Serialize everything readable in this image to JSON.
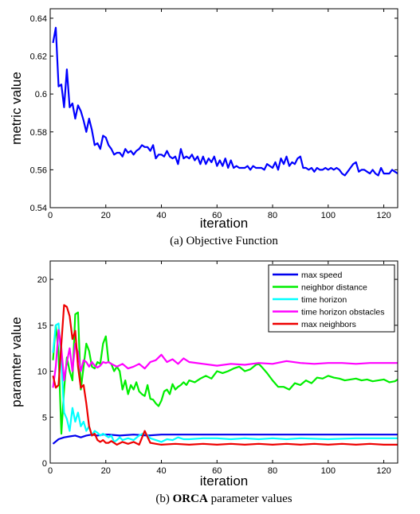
{
  "chart_data": [
    {
      "type": "line",
      "caption": "(a) Objective Function",
      "xlabel": "iteration",
      "ylabel": "metric value",
      "xlim": [
        0,
        125
      ],
      "ylim": [
        0.54,
        0.645
      ],
      "x_ticks": [
        0,
        20,
        40,
        60,
        80,
        100,
        120
      ],
      "y_ticks": [
        0.54,
        0.56,
        0.58,
        0.6,
        0.62,
        0.64
      ],
      "grid": false,
      "series": [
        {
          "color": "#0000ff",
          "x": [
            1,
            2,
            3,
            4,
            5,
            6,
            7,
            8,
            9,
            10,
            11,
            12,
            13,
            14,
            15,
            16,
            17,
            18,
            19,
            20,
            21,
            22,
            23,
            24,
            25,
            26,
            27,
            28,
            29,
            30,
            31,
            32,
            33,
            34,
            35,
            36,
            37,
            38,
            39,
            40,
            41,
            42,
            43,
            44,
            45,
            46,
            47,
            48,
            49,
            50,
            51,
            52,
            53,
            54,
            55,
            56,
            57,
            58,
            59,
            60,
            61,
            62,
            63,
            64,
            65,
            66,
            67,
            68,
            69,
            70,
            71,
            72,
            73,
            74,
            75,
            76,
            77,
            78,
            79,
            80,
            81,
            82,
            83,
            84,
            85,
            86,
            87,
            88,
            89,
            90,
            91,
            92,
            93,
            94,
            95,
            96,
            97,
            98,
            99,
            100,
            101,
            102,
            103,
            104,
            105,
            106,
            107,
            108,
            109,
            110,
            111,
            112,
            113,
            114,
            115,
            116,
            117,
            118,
            119,
            120,
            121,
            122,
            123,
            124,
            125
          ],
          "values": [
            0.627,
            0.635,
            0.604,
            0.605,
            0.593,
            0.613,
            0.593,
            0.595,
            0.587,
            0.594,
            0.591,
            0.586,
            0.58,
            0.587,
            0.581,
            0.573,
            0.574,
            0.571,
            0.578,
            0.577,
            0.573,
            0.571,
            0.568,
            0.569,
            0.569,
            0.567,
            0.571,
            0.569,
            0.57,
            0.568,
            0.57,
            0.571,
            0.573,
            0.572,
            0.572,
            0.57,
            0.573,
            0.566,
            0.568,
            0.568,
            0.567,
            0.57,
            0.567,
            0.566,
            0.567,
            0.563,
            0.571,
            0.566,
            0.567,
            0.566,
            0.568,
            0.565,
            0.567,
            0.563,
            0.567,
            0.563,
            0.566,
            0.564,
            0.567,
            0.562,
            0.565,
            0.562,
            0.566,
            0.561,
            0.565,
            0.561,
            0.562,
            0.561,
            0.561,
            0.561,
            0.562,
            0.56,
            0.562,
            0.561,
            0.561,
            0.561,
            0.56,
            0.563,
            0.562,
            0.561,
            0.564,
            0.56,
            0.566,
            0.563,
            0.567,
            0.562,
            0.564,
            0.563,
            0.566,
            0.567,
            0.561,
            0.561,
            0.56,
            0.561,
            0.559,
            0.561,
            0.56,
            0.56,
            0.561,
            0.56,
            0.561,
            0.56,
            0.561,
            0.56,
            0.558,
            0.557,
            0.559,
            0.561,
            0.563,
            0.564,
            0.559,
            0.56,
            0.56,
            0.559,
            0.558,
            0.56,
            0.558,
            0.557,
            0.561,
            0.558,
            0.558,
            0.558,
            0.56,
            0.559,
            0.558
          ]
        }
      ]
    },
    {
      "type": "line",
      "caption_prefix": "(b) ",
      "caption_bold": "ORCA",
      "caption_suffix": " parameter values",
      "xlabel": "iteration",
      "ylabel": "paramter value",
      "xlim": [
        0,
        125
      ],
      "ylim": [
        0,
        22
      ],
      "x_ticks": [
        0,
        20,
        40,
        60,
        80,
        100,
        120
      ],
      "y_ticks": [
        0,
        5,
        10,
        15,
        20
      ],
      "grid": false,
      "legend_position": "top-right",
      "series": [
        {
          "name": "max speed",
          "color": "#0000ee",
          "x": [
            1,
            3,
            5,
            7,
            9,
            11,
            13,
            15,
            17,
            19,
            21,
            25,
            30,
            35,
            40,
            50,
            60,
            70,
            80,
            90,
            100,
            110,
            125
          ],
          "values": [
            2.1,
            2.6,
            2.8,
            2.9,
            3.0,
            2.8,
            3.0,
            3.1,
            3.0,
            3.1,
            3.1,
            3.0,
            3.1,
            3.0,
            3.1,
            3.1,
            3.1,
            3.1,
            3.1,
            3.1,
            3.1,
            3.1,
            3.1
          ]
        },
        {
          "name": "neighbor distance",
          "color": "#00ee00",
          "x": [
            1,
            2,
            3,
            4,
            5,
            6,
            7,
            8,
            9,
            10,
            11,
            12,
            13,
            14,
            15,
            16,
            17,
            18,
            19,
            20,
            21,
            22,
            23,
            24,
            25,
            26,
            27,
            28,
            29,
            30,
            31,
            32,
            33,
            34,
            35,
            36,
            37,
            38,
            39,
            40,
            41,
            42,
            43,
            44,
            45,
            46,
            47,
            48,
            49,
            50,
            52,
            54,
            56,
            58,
            60,
            62,
            64,
            66,
            68,
            70,
            72,
            74,
            75,
            76,
            78,
            80,
            82,
            84,
            86,
            88,
            90,
            92,
            94,
            96,
            98,
            100,
            102,
            104,
            106,
            108,
            110,
            112,
            114,
            116,
            118,
            120,
            122,
            124,
            125
          ],
          "values": [
            11.2,
            15.0,
            12.0,
            3.2,
            8.0,
            11.5,
            10.0,
            9.0,
            16.2,
            16.4,
            8.0,
            10.5,
            13.0,
            12.2,
            10.5,
            10.3,
            11.0,
            10.8,
            13.0,
            13.8,
            11.0,
            10.8,
            10.0,
            10.5,
            10.0,
            8.0,
            9.0,
            7.5,
            8.5,
            8.0,
            8.8,
            7.8,
            7.5,
            7.3,
            8.5,
            7.0,
            6.9,
            6.5,
            6.2,
            6.8,
            7.8,
            8.0,
            7.5,
            8.6,
            8.0,
            8.3,
            8.5,
            8.8,
            8.5,
            9.0,
            8.8,
            9.2,
            9.5,
            9.2,
            10.0,
            9.8,
            10.0,
            10.3,
            10.5,
            10.0,
            10.2,
            10.7,
            10.8,
            10.5,
            9.8,
            9.0,
            8.3,
            8.3,
            8.0,
            8.7,
            8.5,
            9.0,
            8.7,
            9.3,
            9.2,
            9.5,
            9.3,
            9.2,
            9.0,
            9.1,
            9.2,
            9.0,
            9.1,
            8.9,
            9.0,
            9.1,
            8.8,
            8.9,
            9.1
          ]
        },
        {
          "name": "time horizon",
          "color": "#00ffff",
          "x": [
            1,
            2,
            3,
            4,
            5,
            6,
            7,
            8,
            9,
            10,
            11,
            12,
            13,
            14,
            15,
            16,
            17,
            18,
            19,
            20,
            21,
            22,
            23,
            24,
            25,
            26,
            28,
            30,
            32,
            34,
            36,
            38,
            40,
            42,
            44,
            46,
            48,
            50,
            55,
            60,
            65,
            70,
            75,
            80,
            85,
            90,
            100,
            110,
            125
          ],
          "values": [
            12.0,
            15.0,
            15.2,
            11.0,
            5.5,
            4.8,
            3.5,
            6.0,
            4.5,
            5.5,
            4.0,
            4.5,
            3.5,
            4.0,
            3.0,
            3.5,
            3.3,
            3.0,
            3.2,
            3.0,
            2.8,
            3.0,
            2.3,
            2.5,
            2.8,
            2.5,
            2.7,
            2.5,
            3.0,
            3.3,
            2.7,
            2.5,
            2.3,
            2.6,
            2.5,
            2.8,
            2.6,
            2.6,
            2.7,
            2.7,
            2.6,
            2.7,
            2.6,
            2.7,
            2.6,
            2.7,
            2.6,
            2.7,
            2.7
          ]
        },
        {
          "name": "time horizon obstacles",
          "color": "#ff00ff",
          "x": [
            1,
            2,
            3,
            4,
            5,
            6,
            7,
            8,
            9,
            10,
            11,
            12,
            13,
            14,
            15,
            16,
            17,
            18,
            19,
            20,
            21,
            22,
            24,
            26,
            28,
            30,
            32,
            34,
            36,
            38,
            40,
            42,
            44,
            46,
            48,
            50,
            55,
            60,
            65,
            70,
            75,
            80,
            85,
            90,
            95,
            100,
            105,
            110,
            115,
            120,
            125
          ],
          "values": [
            8.2,
            10.5,
            14.5,
            12.5,
            9.0,
            11.0,
            12.5,
            10.0,
            13.0,
            12.0,
            10.0,
            11.2,
            11.0,
            10.5,
            11.0,
            10.6,
            10.4,
            10.6,
            11.0,
            10.9,
            11.0,
            10.8,
            10.5,
            10.8,
            10.3,
            10.5,
            10.8,
            10.3,
            11.0,
            11.2,
            11.8,
            11.0,
            11.3,
            10.8,
            11.4,
            11.0,
            10.8,
            10.6,
            10.8,
            10.7,
            10.9,
            10.8,
            11.1,
            10.9,
            10.8,
            10.9,
            10.9,
            10.8,
            10.9,
            10.9,
            10.9
          ]
        },
        {
          "name": "max neighbors",
          "color": "#ee0000",
          "x": [
            1,
            2,
            3,
            4,
            5,
            6,
            7,
            8,
            9,
            10,
            11,
            12,
            13,
            14,
            15,
            16,
            17,
            18,
            19,
            20,
            21,
            22,
            24,
            26,
            28,
            30,
            32,
            34,
            36,
            38,
            40,
            45,
            50,
            55,
            60,
            65,
            70,
            75,
            80,
            85,
            90,
            95,
            100,
            105,
            110,
            115,
            120,
            125
          ],
          "values": [
            9.5,
            8.2,
            8.5,
            13.0,
            17.2,
            17.0,
            16.0,
            13.5,
            14.4,
            10.5,
            8.2,
            8.5,
            6.5,
            4.0,
            3.0,
            3.2,
            2.5,
            2.3,
            2.5,
            2.2,
            2.2,
            2.4,
            2.0,
            2.3,
            2.1,
            2.3,
            2.0,
            3.5,
            2.2,
            2.1,
            2.0,
            2.1,
            2.0,
            2.1,
            2.0,
            2.1,
            2.0,
            2.1,
            2.0,
            2.1,
            2.0,
            2.1,
            2.0,
            2.1,
            2.0,
            2.1,
            2.0,
            2.0
          ]
        }
      ]
    }
  ]
}
